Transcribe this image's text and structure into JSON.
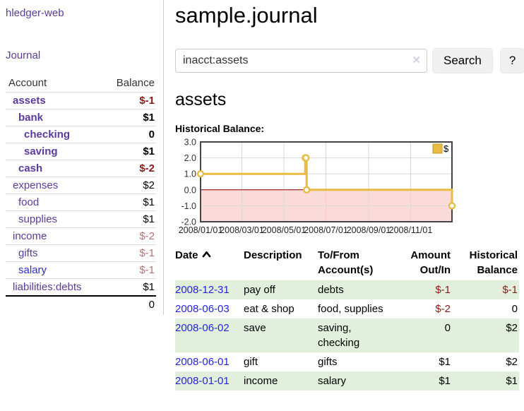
{
  "colors": {
    "link_purple": "#5b3aa0",
    "link_blue": "#2b2bd8",
    "neg_strong": "#8b1a1a",
    "neg_muted": "#b97171",
    "row_green": "#e2efdc",
    "chart_line": "#e7bb44",
    "chart_line_border": "#c19a2e",
    "chart_fill_negative": "#fbdada",
    "zero_line": "#8b0000",
    "chart_border": "#444444"
  },
  "app_title": "hledger-web",
  "sidebar": {
    "journal_link": "Journal",
    "account_header": "Account",
    "balance_header": "Balance",
    "accounts": [
      {
        "name": "assets",
        "balance": "$-1",
        "depth": 1,
        "bold": true,
        "neg": "strong"
      },
      {
        "name": "bank",
        "balance": "$1",
        "depth": 2,
        "bold": true,
        "neg": "none"
      },
      {
        "name": "checking",
        "balance": "0",
        "depth": 3,
        "bold": true,
        "neg": "none"
      },
      {
        "name": "saving",
        "balance": "$1",
        "depth": 3,
        "bold": true,
        "neg": "none"
      },
      {
        "name": "cash",
        "balance": "$-2",
        "depth": 2,
        "bold": true,
        "neg": "strong"
      },
      {
        "name": "expenses",
        "balance": "$2",
        "depth": 1,
        "bold": false,
        "neg": "none"
      },
      {
        "name": "food",
        "balance": "$1",
        "depth": 2,
        "bold": false,
        "neg": "none"
      },
      {
        "name": "supplies",
        "balance": "$1",
        "depth": 2,
        "bold": false,
        "neg": "none"
      },
      {
        "name": "income",
        "balance": "$-2",
        "depth": 1,
        "bold": false,
        "neg": "muted"
      },
      {
        "name": "gifts",
        "balance": "$-1",
        "depth": 2,
        "bold": false,
        "neg": "muted"
      },
      {
        "name": "salary",
        "balance": "$-1",
        "depth": 2,
        "bold": false,
        "neg": "muted",
        "blue": true
      },
      {
        "name": "liabilities:debts",
        "balance": "$1",
        "depth": 1,
        "bold": false,
        "neg": "none"
      }
    ],
    "total": "0"
  },
  "main": {
    "title": "sample.journal",
    "search": {
      "value": "inacct:assets",
      "clear": "✕",
      "search_button": "Search",
      "help_button": "?"
    },
    "account_heading": "assets",
    "chart_title": "Historical Balance:"
  },
  "chart_data": {
    "type": "line",
    "step": true,
    "title": "Historical Balance",
    "legend": "$",
    "legend_position": "top-right",
    "grid": true,
    "ylim": [
      -2.0,
      3.0
    ],
    "y_ticks": [
      3.0,
      2.0,
      1.0,
      0.0,
      -1.0,
      -2.0
    ],
    "x_range": [
      "2008-01-01",
      "2008-12-31"
    ],
    "x_ticks": [
      "2008/01/01",
      "2008/03/01",
      "2008/05/01",
      "2008/07/01",
      "2008/09/01",
      "2008/11/01"
    ],
    "negative_region_fill": true,
    "series": [
      {
        "name": "$",
        "points": [
          [
            "2008-01-01",
            1.0
          ],
          [
            "2008-06-01",
            2.0
          ],
          [
            "2008-06-02",
            2.0
          ],
          [
            "2008-06-03",
            0.0
          ],
          [
            "2008-12-31",
            -1.0
          ]
        ]
      }
    ]
  },
  "register": {
    "headers": {
      "date": "Date",
      "description": "Description",
      "accounts": "To/From Account(s)",
      "amount": "Amount Out/In",
      "balance": "Historical Balance"
    },
    "rows": [
      {
        "date": "2008-12-31",
        "description": "pay off",
        "accounts": "debts",
        "amount": "$-1",
        "balance": "$-1",
        "amount_neg": true,
        "balance_neg": true
      },
      {
        "date": "2008-06-03",
        "description": "eat & shop",
        "accounts": "food, supplies",
        "amount": "$-2",
        "balance": "0",
        "amount_neg": true,
        "balance_neg": false
      },
      {
        "date": "2008-06-02",
        "description": "save",
        "accounts": "saving,\nchecking",
        "amount": "0",
        "balance": "$2",
        "amount_neg": false,
        "balance_neg": false
      },
      {
        "date": "2008-06-01",
        "description": "gift",
        "accounts": "gifts",
        "amount": "$1",
        "balance": "$2",
        "amount_neg": false,
        "balance_neg": false
      },
      {
        "date": "2008-01-01",
        "description": "income",
        "accounts": "salary",
        "amount": "$1",
        "balance": "$1",
        "amount_neg": false,
        "balance_neg": false
      }
    ]
  }
}
